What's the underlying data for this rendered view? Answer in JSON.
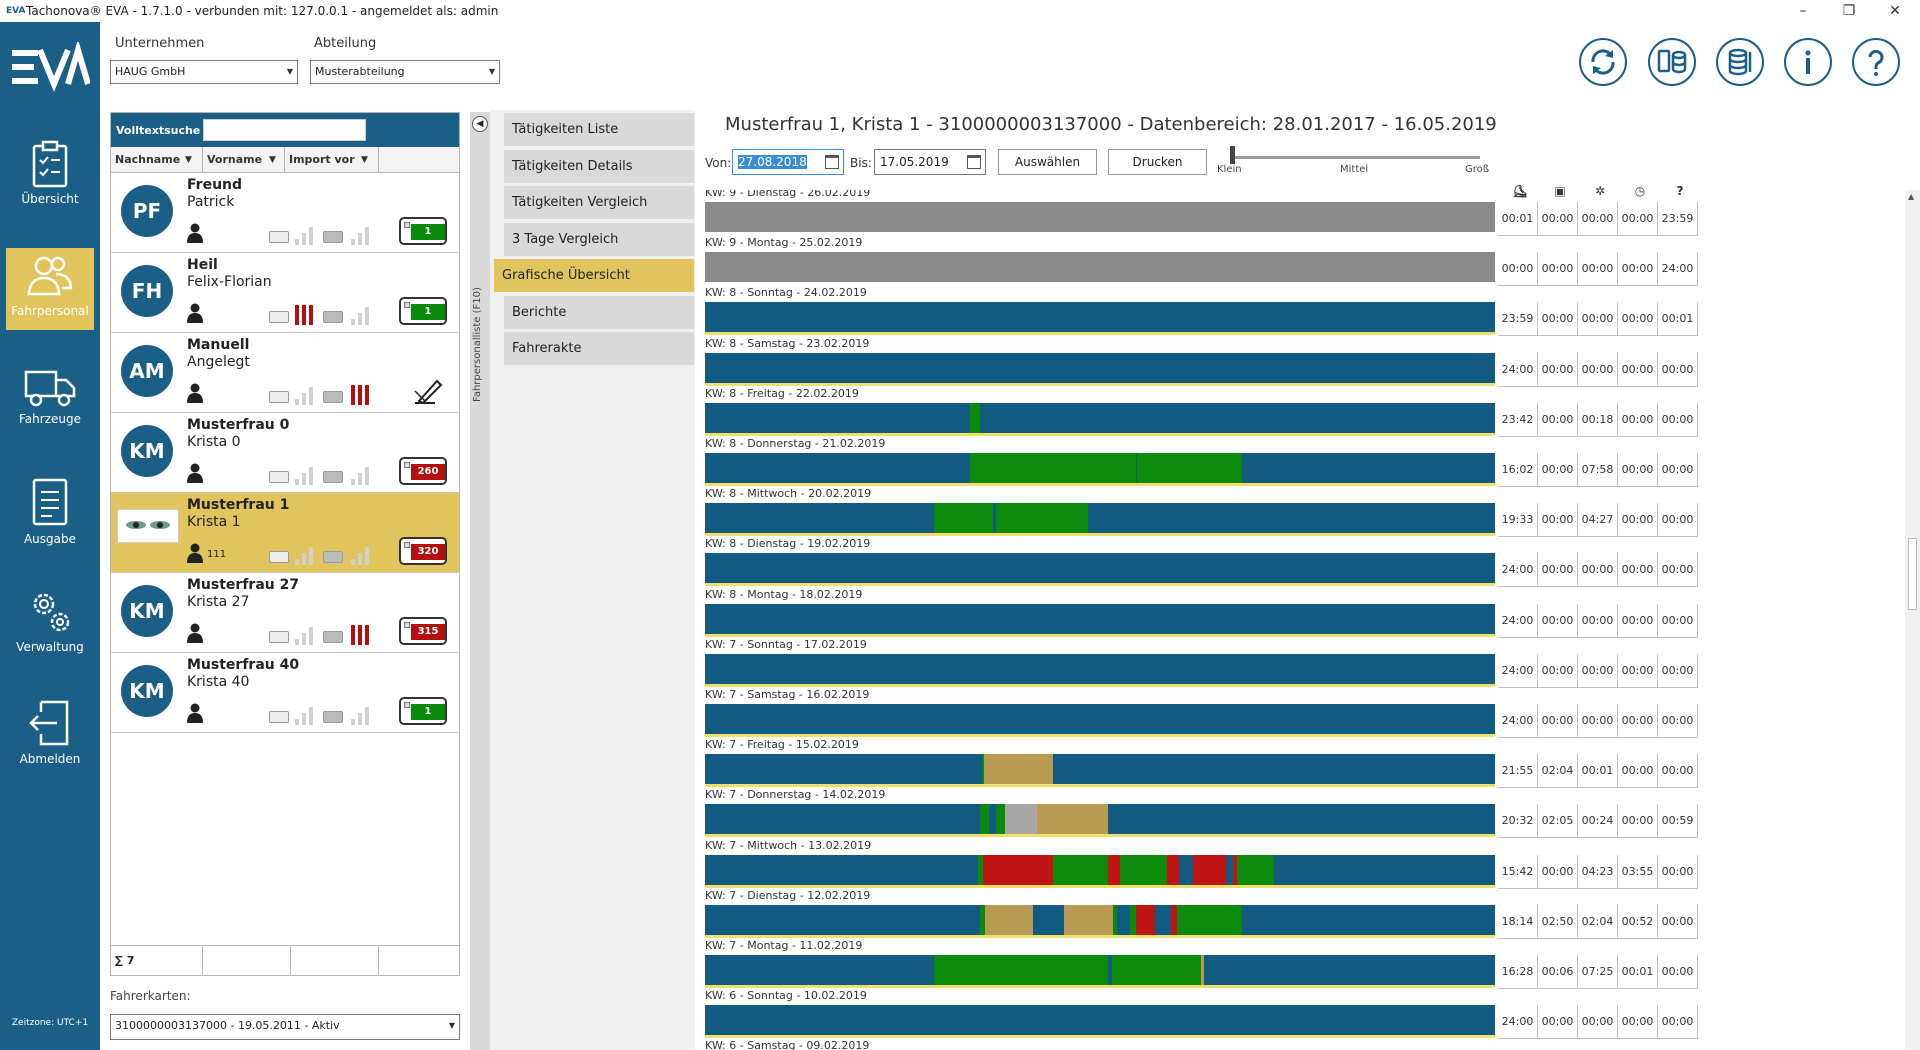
{
  "window": {
    "title": "Tachonova® EVA - 1.7.1.0 - verbunden mit: 127.0.0.1 - angemeldet als: admin",
    "logo_text": "EVA",
    "minimize": "–",
    "maximize": "❐",
    "close": "✕"
  },
  "sidebar": {
    "brand": "EVA",
    "items": [
      {
        "label": "Übersicht",
        "icon": "clipboard-icon"
      },
      {
        "label": "Fahrpersonal",
        "icon": "people-icon",
        "active": true
      },
      {
        "label": "Fahrzeuge",
        "icon": "truck-icon"
      },
      {
        "label": "Ausgabe",
        "icon": "document-icon"
      },
      {
        "label": "Verwaltung",
        "icon": "gears-icon"
      },
      {
        "label": "Abmelden",
        "icon": "logout-icon"
      }
    ],
    "timezone": "Zeitzone: UTC+1"
  },
  "filters": {
    "company_label": "Unternehmen",
    "company_value": "HAUG GmbH",
    "department_label": "Abteilung",
    "department_value": "Musterabteilung"
  },
  "toolbar_icons": [
    "sync-icon",
    "device-database-icon",
    "database-list-icon",
    "info-icon",
    "help-icon"
  ],
  "list": {
    "search_label": "Volltextsuche",
    "search_value": "",
    "columns": [
      "Nachname",
      "Vorname",
      "Import vor"
    ],
    "filter_glyph": "▼",
    "drivers": [
      {
        "initials": "PF",
        "last": "Freund",
        "first": "Patrick",
        "badge": "1",
        "badge_color": "#0a8a0a",
        "bars": "gray"
      },
      {
        "initials": "FH",
        "last": "Heil",
        "first": "Felix-Florian",
        "badge": "1",
        "badge_color": "#0a8a0a",
        "bars": "red-first"
      },
      {
        "initials": "AM",
        "last": "Manuell",
        "first": "Angelegt",
        "badge": "",
        "badge_color": "",
        "bars": "red-second",
        "edit_icon": true
      },
      {
        "initials": "KM",
        "last": "Musterfrau 0",
        "first": "Krista 0",
        "badge": "260",
        "badge_color": "#b50f0f",
        "bars": "gray"
      },
      {
        "initials": "",
        "last": "Musterfrau 1",
        "first": "Krista 1",
        "badge": "320",
        "badge_color": "#b50f0f",
        "bars": "gray",
        "selected": true,
        "number": "111",
        "photo": true
      },
      {
        "initials": "KM",
        "last": "Musterfrau 27",
        "first": "Krista 27",
        "badge": "315",
        "badge_color": "#b50f0f",
        "bars": "red-second"
      },
      {
        "initials": "KM",
        "last": "Musterfrau 40",
        "first": "Krista 40",
        "badge": "1",
        "badge_color": "#0a8a0a",
        "bars": "gray"
      }
    ],
    "sum": "∑ 7"
  },
  "cards": {
    "label": "Fahrerkarten:",
    "value": "3100000003137000 - 19.05.2011 - Aktiv"
  },
  "strip": {
    "toggle": "◀",
    "vertical_label": "Fahrpersonalliste (F10)"
  },
  "tabs": [
    {
      "label": "Tätigkeiten Liste"
    },
    {
      "label": "Tätigkeiten Details"
    },
    {
      "label": "Tätigkeiten Vergleich"
    },
    {
      "label": "3 Tage Vergleich"
    },
    {
      "label": "Grafische Übersicht",
      "active": true
    },
    {
      "label": "Berichte"
    },
    {
      "label": "Fahrerakte"
    }
  ],
  "main": {
    "title": "Musterfrau 1, Krista 1 - 3100000003137000 - Datenbereich: 28.01.2017 - 16.05.2019",
    "from_label": "Von:",
    "from_value": "27.08.2018",
    "to_label": "Bis:",
    "to_value": "17.05.2019",
    "select_button": "Auswählen",
    "print_button": "Drucken",
    "slider": {
      "labels": [
        "Klein",
        "Mittel",
        "Groß"
      ],
      "value": "Klein"
    },
    "column_icons": [
      "bed-icon",
      "stand-icon",
      "steering-icon",
      "clock-icon",
      "unknown-icon"
    ],
    "column_glyphs": [
      "⛸",
      "▣",
      "✲",
      "◷",
      "?"
    ]
  },
  "colors": {
    "rest": "#115a82",
    "drive": "#0c8a0c",
    "work": "#b89a52",
    "avail": "#c01414",
    "unknown": "#8a8a8a",
    "lightgray": "#a8a8a8",
    "accent": "#e1c55c",
    "brand": "#1b5f86"
  },
  "days": [
    {
      "label": "KW: 9 - Dienstag - 26.02.2019",
      "bg": "unknown",
      "segs": [],
      "vals": [
        "00:01",
        "00:00",
        "00:00",
        "00:00",
        "23:59"
      ]
    },
    {
      "label": "KW: 9 - Montag - 25.02.2019",
      "bg": "unknown",
      "segs": [],
      "vals": [
        "00:00",
        "00:00",
        "00:00",
        "00:00",
        "24:00"
      ]
    },
    {
      "label": "KW: 8 - Sonntag - 24.02.2019",
      "bg": "rest",
      "segs": [],
      "vals": [
        "23:59",
        "00:00",
        "00:00",
        "00:00",
        "00:01"
      ]
    },
    {
      "label": "KW: 8 - Samstag - 23.02.2019",
      "bg": "rest",
      "segs": [],
      "vals": [
        "24:00",
        "00:00",
        "00:00",
        "00:00",
        "00:00"
      ]
    },
    {
      "label": "KW: 8 - Freitag - 22.02.2019",
      "bg": "rest",
      "segs": [
        {
          "s": 0.335,
          "e": 0.348,
          "c": "drive"
        }
      ],
      "vals": [
        "23:42",
        "00:00",
        "00:18",
        "00:00",
        "00:00"
      ]
    },
    {
      "label": "KW: 8 - Donnerstag - 21.02.2019",
      "bg": "rest",
      "segs": [
        {
          "s": 0.335,
          "e": 0.545,
          "c": "drive"
        },
        {
          "s": 0.545,
          "e": 0.547,
          "c": "rest"
        },
        {
          "s": 0.547,
          "e": 0.68,
          "c": "drive"
        }
      ],
      "vals": [
        "16:02",
        "00:00",
        "07:58",
        "00:00",
        "00:00"
      ]
    },
    {
      "label": "KW: 8 - Mittwoch - 20.02.2019",
      "bg": "rest",
      "segs": [
        {
          "s": 0.29,
          "e": 0.365,
          "c": "drive"
        },
        {
          "s": 0.365,
          "e": 0.368,
          "c": "rest"
        },
        {
          "s": 0.368,
          "e": 0.485,
          "c": "drive"
        }
      ],
      "vals": [
        "19:33",
        "00:00",
        "04:27",
        "00:00",
        "00:00"
      ]
    },
    {
      "label": "KW: 8 - Dienstag - 19.02.2019",
      "bg": "rest",
      "segs": [],
      "vals": [
        "24:00",
        "00:00",
        "00:00",
        "00:00",
        "00:00"
      ]
    },
    {
      "label": "KW: 8 - Montag - 18.02.2019",
      "bg": "rest",
      "segs": [],
      "vals": [
        "24:00",
        "00:00",
        "00:00",
        "00:00",
        "00:00"
      ]
    },
    {
      "label": "KW: 7 - Sonntag - 17.02.2019",
      "bg": "rest",
      "segs": [],
      "vals": [
        "24:00",
        "00:00",
        "00:00",
        "00:00",
        "00:00"
      ]
    },
    {
      "label": "KW: 7 - Samstag - 16.02.2019",
      "bg": "rest",
      "segs": [],
      "vals": [
        "24:00",
        "00:00",
        "00:00",
        "00:00",
        "00:00"
      ]
    },
    {
      "label": "KW: 7 - Freitag - 15.02.2019",
      "bg": "rest",
      "segs": [
        {
          "s": 0.35,
          "e": 0.353,
          "c": "drive"
        },
        {
          "s": 0.353,
          "e": 0.44,
          "c": "work"
        }
      ],
      "vals": [
        "21:55",
        "02:04",
        "00:01",
        "00:00",
        "00:00"
      ]
    },
    {
      "label": "KW: 7 - Donnerstag - 14.02.2019",
      "bg": "rest",
      "segs": [
        {
          "s": 0.348,
          "e": 0.36,
          "c": "drive"
        },
        {
          "s": 0.368,
          "e": 0.38,
          "c": "drive"
        },
        {
          "s": 0.38,
          "e": 0.42,
          "c": "lightgray"
        },
        {
          "s": 0.42,
          "e": 0.51,
          "c": "work"
        }
      ],
      "vals": [
        "20:32",
        "02:05",
        "00:24",
        "00:00",
        "00:59"
      ]
    },
    {
      "label": "KW: 7 - Mittwoch - 13.02.2019",
      "bg": "rest",
      "segs": [
        {
          "s": 0.345,
          "e": 0.352,
          "c": "drive"
        },
        {
          "s": 0.352,
          "e": 0.44,
          "c": "avail"
        },
        {
          "s": 0.44,
          "e": 0.51,
          "c": "drive"
        },
        {
          "s": 0.51,
          "e": 0.525,
          "c": "avail"
        },
        {
          "s": 0.525,
          "e": 0.585,
          "c": "drive"
        },
        {
          "s": 0.585,
          "e": 0.6,
          "c": "avail"
        },
        {
          "s": 0.618,
          "e": 0.66,
          "c": "avail"
        },
        {
          "s": 0.668,
          "e": 0.674,
          "c": "avail"
        },
        {
          "s": 0.674,
          "e": 0.72,
          "c": "drive"
        }
      ],
      "vals": [
        "15:42",
        "00:00",
        "04:23",
        "03:55",
        "00:00"
      ]
    },
    {
      "label": "KW: 7 - Dienstag - 12.02.2019",
      "bg": "rest",
      "segs": [
        {
          "s": 0.348,
          "e": 0.354,
          "c": "drive"
        },
        {
          "s": 0.354,
          "e": 0.415,
          "c": "work"
        },
        {
          "s": 0.455,
          "e": 0.517,
          "c": "work"
        },
        {
          "s": 0.517,
          "e": 0.522,
          "c": "drive"
        },
        {
          "s": 0.538,
          "e": 0.545,
          "c": "drive"
        },
        {
          "s": 0.545,
          "e": 0.57,
          "c": "avail"
        },
        {
          "s": 0.59,
          "e": 0.598,
          "c": "avail"
        },
        {
          "s": 0.598,
          "e": 0.68,
          "c": "drive"
        }
      ],
      "vals": [
        "18:14",
        "02:50",
        "02:04",
        "00:52",
        "00:00"
      ]
    },
    {
      "label": "KW: 7 - Montag - 11.02.2019",
      "bg": "rest",
      "segs": [
        {
          "s": 0.29,
          "e": 0.51,
          "c": "drive"
        },
        {
          "s": 0.515,
          "e": 0.52,
          "c": "drive"
        },
        {
          "s": 0.52,
          "e": 0.628,
          "c": "drive"
        },
        {
          "s": 0.628,
          "e": 0.632,
          "c": "work"
        }
      ],
      "vals": [
        "16:28",
        "00:06",
        "07:25",
        "00:01",
        "00:00"
      ]
    },
    {
      "label": "KW: 6 - Sonntag - 10.02.2019",
      "bg": "rest",
      "segs": [],
      "vals": [
        "24:00",
        "00:00",
        "00:00",
        "00:00",
        "00:00"
      ]
    },
    {
      "label": "KW: 6 - Samstag - 09.02.2019",
      "bg": "rest",
      "segs": [],
      "vals": [
        "",
        "",
        "",
        "",
        ""
      ]
    }
  ]
}
